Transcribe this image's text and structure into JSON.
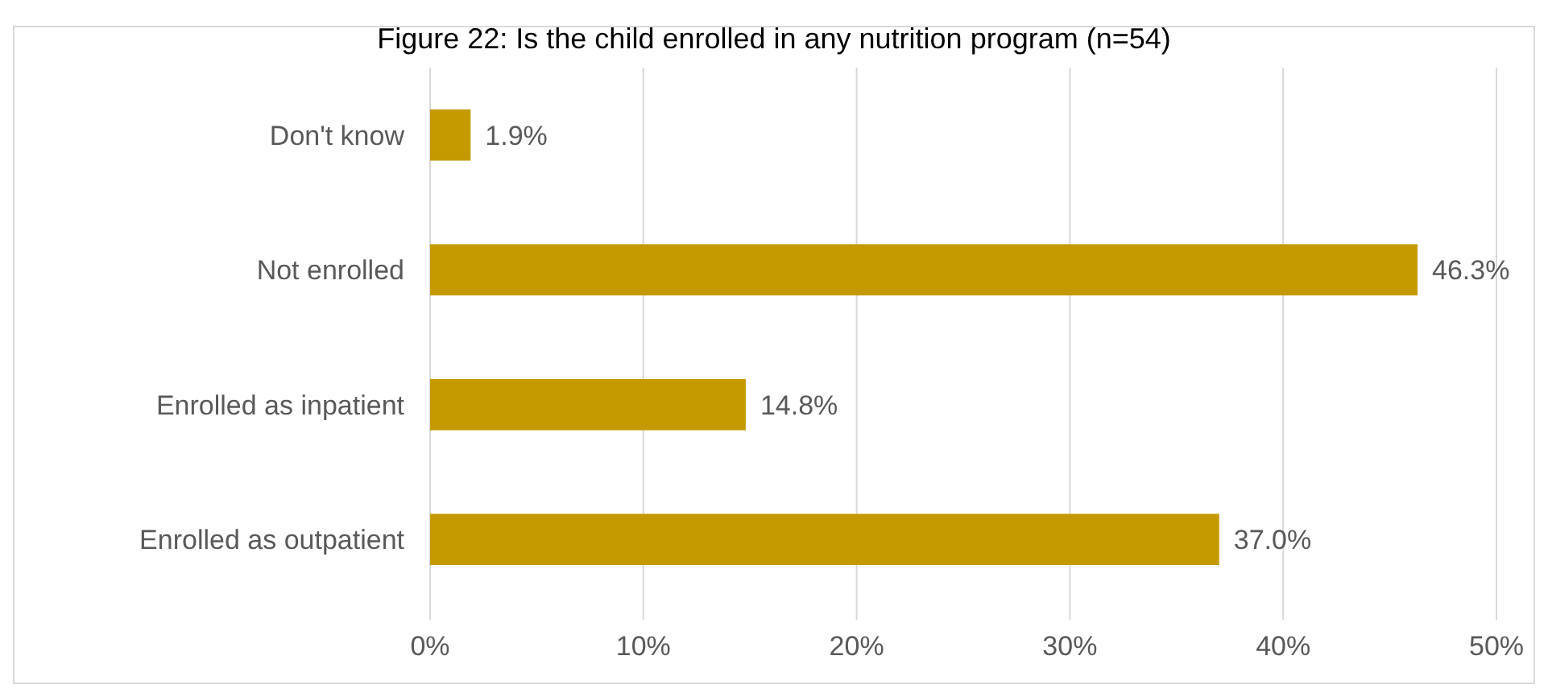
{
  "chart_data": {
    "type": "bar",
    "orientation": "horizontal",
    "title": "Figure 22: Is the child enrolled in any nutrition program (n=54)",
    "categories": [
      "Don't know",
      "Not enrolled",
      "Enrolled as inpatient",
      "Enrolled as outpatient"
    ],
    "values": [
      1.9,
      46.3,
      14.8,
      37.0
    ],
    "value_labels": [
      "1.9%",
      "46.3%",
      "14.8%",
      "37.0%"
    ],
    "color": "#c49a00",
    "xlim": [
      0,
      50
    ],
    "xticks": [
      {
        "value": 0,
        "label": "0%"
      },
      {
        "value": 10,
        "label": "10%"
      },
      {
        "value": 20,
        "label": "20%"
      },
      {
        "value": 30,
        "label": "30%"
      },
      {
        "value": 40,
        "label": "40%"
      },
      {
        "value": 50,
        "label": "50%"
      }
    ],
    "grid": "x"
  }
}
